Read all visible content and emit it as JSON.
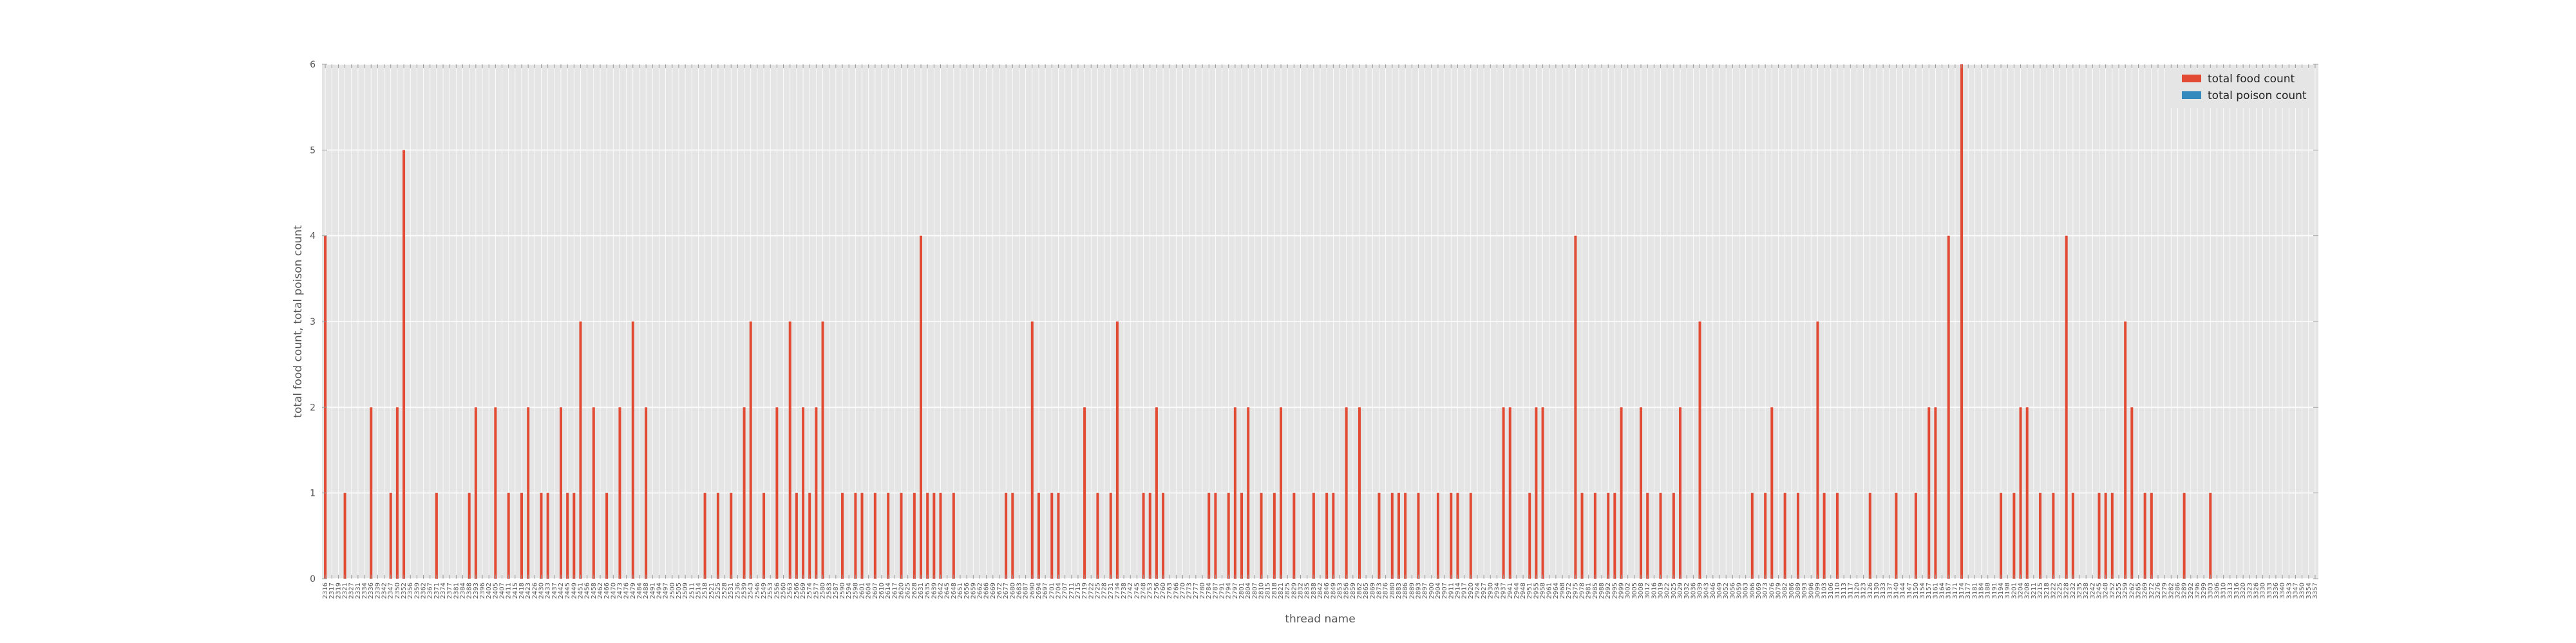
{
  "chart_data": {
    "type": "bar",
    "xlabel": "thread name",
    "ylabel": "total food count, total poison count",
    "ylim": [
      0,
      6
    ],
    "yticks": [
      0,
      1,
      2,
      3,
      4,
      5,
      6
    ],
    "grid": true,
    "legend_position": "top-right",
    "x_tick_labels": [
      "2316",
      "2317",
      "2319",
      "2321",
      "2327",
      "2331",
      "2334",
      "2336",
      "2339",
      "2342",
      "2347",
      "2350",
      "2352",
      "2356",
      "2359",
      "2362",
      "2367",
      "2371",
      "2374",
      "2377",
      "2381",
      "2384",
      "2388",
      "2393",
      "2396",
      "2402",
      "2405",
      "2407",
      "2411",
      "2415",
      "2418",
      "2423",
      "2426",
      "2430",
      "2433",
      "2437",
      "2442",
      "2445",
      "2449",
      "2451",
      "2456",
      "2458",
      "2462",
      "2466",
      "2470",
      "2473",
      "2476",
      "2479",
      "2484",
      "2488",
      "2491",
      "2494",
      "2497",
      "2500",
      "2505",
      "2509",
      "2511",
      "2514",
      "2518",
      "2521",
      "2525",
      "2528",
      "2531",
      "2536",
      "2539",
      "2543",
      "2546",
      "2549",
      "2553",
      "2556",
      "2560",
      "2563",
      "2566",
      "2569",
      "2574",
      "2577",
      "2580",
      "2583",
      "2587",
      "2590",
      "2594",
      "2598",
      "2601",
      "2604",
      "2607",
      "2610",
      "2614",
      "2617",
      "2620",
      "2625",
      "2628",
      "2631",
      "2635",
      "2639",
      "2642",
      "2645",
      "2648",
      "2651",
      "2656",
      "2659",
      "2662",
      "2666",
      "2669",
      "2672",
      "2677",
      "2680",
      "2683",
      "2687",
      "2690",
      "2694",
      "2697",
      "2701",
      "2704",
      "2707",
      "2711",
      "2715",
      "2719",
      "2722",
      "2725",
      "2728",
      "2731",
      "2734",
      "2738",
      "2742",
      "2745",
      "2748",
      "2753",
      "2756",
      "2760",
      "2763",
      "2766",
      "2770",
      "2773",
      "2777",
      "2780",
      "2784",
      "2787",
      "2791",
      "2794",
      "2797",
      "2801",
      "2804",
      "2807",
      "2810",
      "2815",
      "2818",
      "2821",
      "2825",
      "2829",
      "2832",
      "2835",
      "2838",
      "2842",
      "2846",
      "2849",
      "2853",
      "2856",
      "2859",
      "2862",
      "2865",
      "2869",
      "2873",
      "2876",
      "2880",
      "2883",
      "2886",
      "2889",
      "2893",
      "2897",
      "2900",
      "2904",
      "2907",
      "2911",
      "2914",
      "2917",
      "2920",
      "2924",
      "2927",
      "2930",
      "2934",
      "2937",
      "2941",
      "2944",
      "2948",
      "2951",
      "2955",
      "2958",
      "2961",
      "2964",
      "2968",
      "2972",
      "2975",
      "2978",
      "2981",
      "2985",
      "2988",
      "2992",
      "2995",
      "2999",
      "3002",
      "3005",
      "3008",
      "3012",
      "3016",
      "3019",
      "3022",
      "3025",
      "3029",
      "3032",
      "3036",
      "3039",
      "3043",
      "3046",
      "3049",
      "3052",
      "3056",
      "3059",
      "3063",
      "3066",
      "3069",
      "3073",
      "3076",
      "3079",
      "3082",
      "3086",
      "3089",
      "3093",
      "3096",
      "3099",
      "3103",
      "3106",
      "3110",
      "3113",
      "3117",
      "3120",
      "3123",
      "3126",
      "3130",
      "3133",
      "3137",
      "3140",
      "3144",
      "3147",
      "3150",
      "3154",
      "3157",
      "3161",
      "3164",
      "3167",
      "3171",
      "3174",
      "3177",
      "3181",
      "3184",
      "3188",
      "3191",
      "3194",
      "3198",
      "3201",
      "3204",
      "3208",
      "3211",
      "3215",
      "3218",
      "3222",
      "3225",
      "3228",
      "3232",
      "3235",
      "3238",
      "3242",
      "3245",
      "3248",
      "3252",
      "3255",
      "3259",
      "3262",
      "3265",
      "3269",
      "3272",
      "3276",
      "3279",
      "3282",
      "3286",
      "3289",
      "3292",
      "3296",
      "3299",
      "3303",
      "3306",
      "3310",
      "3313",
      "3316",
      "3320",
      "3323",
      "3326",
      "3330",
      "3333",
      "3336",
      "3340",
      "3343",
      "3347",
      "3350",
      "3354",
      "3357"
    ],
    "series": [
      {
        "name": "total food count",
        "color": "#e24a33",
        "values": [
          4,
          0,
          0,
          1,
          0,
          0,
          0,
          2,
          0,
          0,
          1,
          2,
          5,
          0,
          0,
          0,
          0,
          1,
          0,
          0,
          0,
          0,
          1,
          2,
          0,
          0,
          2,
          0,
          1,
          0,
          1,
          2,
          0,
          1,
          1,
          0,
          2,
          1,
          1,
          3,
          0,
          2,
          0,
          1,
          0,
          2,
          0,
          3,
          0,
          2,
          0,
          0,
          0,
          0,
          0,
          0,
          0,
          0,
          1,
          0,
          1,
          0,
          1,
          0,
          2,
          3,
          0,
          1,
          0,
          2,
          0,
          3,
          1,
          2,
          1,
          2,
          3,
          0,
          0,
          1,
          0,
          1,
          1,
          0,
          1,
          0,
          1,
          0,
          1,
          0,
          1,
          4,
          1,
          1,
          1,
          0,
          1,
          0,
          0,
          0,
          0,
          0,
          0,
          0,
          1,
          1,
          0,
          0,
          3,
          1,
          0,
          1,
          1,
          0,
          0,
          0,
          2,
          0,
          1,
          0,
          1,
          3,
          0,
          0,
          0,
          1,
          1,
          2,
          1,
          0,
          0,
          0,
          0,
          0,
          0,
          1,
          1,
          0,
          1,
          2,
          1,
          2,
          0,
          1,
          0,
          1,
          2,
          0,
          1,
          0,
          0,
          1,
          0,
          1,
          1,
          0,
          2,
          0,
          2,
          0,
          0,
          1,
          0,
          1,
          1,
          1,
          0,
          1,
          0,
          0,
          1,
          0,
          1,
          1,
          0,
          1,
          0,
          0,
          0,
          0,
          2,
          2,
          0,
          0,
          1,
          2,
          2,
          0,
          0,
          0,
          0,
          4,
          1,
          0,
          1,
          0,
          1,
          1,
          2,
          0,
          0,
          2,
          1,
          0,
          1,
          0,
          1,
          2,
          0,
          0,
          3,
          0,
          0,
          0,
          0,
          0,
          0,
          0,
          1,
          0,
          1,
          2,
          0,
          1,
          0,
          1,
          0,
          0,
          3,
          1,
          0,
          1,
          0,
          0,
          0,
          0,
          1,
          0,
          0,
          0,
          1,
          0,
          0,
          1,
          0,
          2,
          2,
          0,
          4,
          0,
          6,
          0,
          0,
          0,
          0,
          0,
          1,
          0,
          1,
          2,
          2,
          0,
          1,
          0,
          1,
          0,
          4,
          1,
          0,
          0,
          0,
          1,
          1,
          1,
          0,
          3,
          2,
          0,
          1,
          1,
          0,
          0,
          0,
          0,
          1,
          0,
          0,
          0,
          1,
          0,
          0,
          0,
          0,
          0,
          0,
          0,
          0,
          0,
          0,
          0,
          0,
          0,
          0,
          0,
          0
        ]
      },
      {
        "name": "total poison count",
        "color": "#348abd",
        "values": []
      }
    ]
  }
}
